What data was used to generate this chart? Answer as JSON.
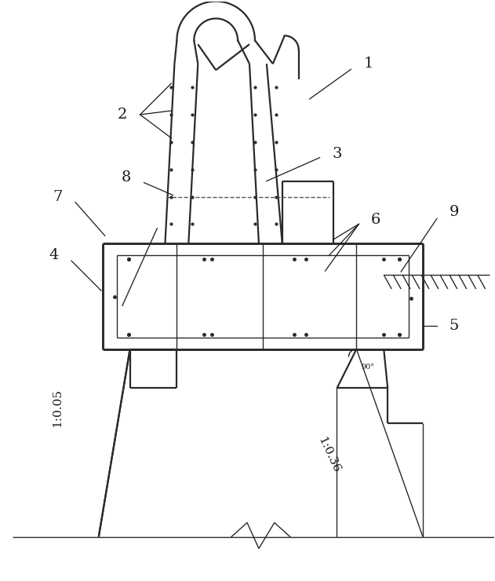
{
  "lc": "#2a2a2a",
  "lw": 1.6,
  "tlw": 1.0,
  "bg": "#ffffff",
  "fs": 14,
  "slope1": "1:0.05",
  "slope2": "1:0.36",
  "ang": "90°"
}
